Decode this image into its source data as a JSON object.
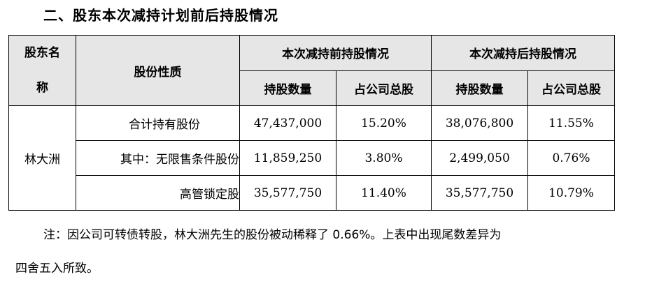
{
  "section_title": "二、股东本次减持计划前后持股情况",
  "table": {
    "header": {
      "holder_line1": "股东名",
      "holder_line2": "称",
      "nature": "股份性质",
      "before": "本次减持前持股情况",
      "after": "本次减持后持股情况",
      "shares": "持股数量",
      "ratio": "占公司总股"
    },
    "holder_name": "林大洲",
    "rows": [
      {
        "nature": "合计持有股份",
        "before_shares": "47,437,000",
        "before_ratio": "15.20%",
        "after_shares": "38,076,800",
        "after_ratio": "11.55%"
      },
      {
        "nature": "其中：无限售条件股份",
        "before_shares": "11,859,250",
        "before_ratio": "3.80%",
        "after_shares": "2,499,050",
        "after_ratio": "0.76%"
      },
      {
        "nature": "高管锁定股",
        "before_shares": "35,577,750",
        "before_ratio": "11.40%",
        "after_shares": "35,577,750",
        "after_ratio": "10.79%"
      }
    ]
  },
  "note": {
    "line1": "注：因公司可转债转股，林大洲先生的股份被动稀释了 0.66%。上表中出现尾数差异为",
    "line2": "四舍五入所致。"
  }
}
